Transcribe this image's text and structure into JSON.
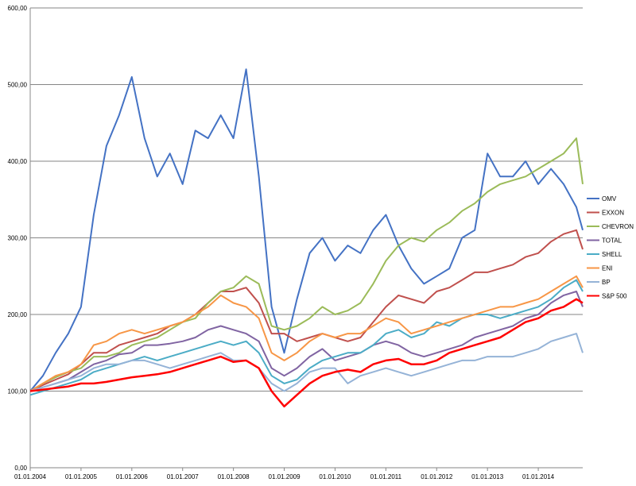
{
  "chart_data": {
    "type": "line",
    "title": "",
    "xlabel": "",
    "ylabel": "",
    "ylim": [
      0,
      600
    ],
    "yticks": [
      "0,00",
      "100,00",
      "200,00",
      "300,00",
      "400,00",
      "500,00",
      "600,00"
    ],
    "xticks": [
      "01.01.2004",
      "01.01.2005",
      "01.01.2006",
      "01.01.2007",
      "01.01.2008",
      "01.01.2009",
      "01.01.2010",
      "01.01.2011",
      "01.01.2012",
      "01.01.2013",
      "01.01.2014"
    ],
    "grid": "horizontal",
    "legend_position": "right",
    "x": [
      "01.01.2004",
      "01.04.2004",
      "01.07.2004",
      "01.10.2004",
      "01.01.2005",
      "01.04.2005",
      "01.07.2005",
      "01.10.2005",
      "01.01.2006",
      "01.04.2006",
      "01.07.2006",
      "01.10.2006",
      "01.01.2007",
      "01.04.2007",
      "01.07.2007",
      "01.10.2007",
      "01.01.2008",
      "01.04.2008",
      "01.07.2008",
      "01.10.2008",
      "01.01.2009",
      "01.04.2009",
      "01.07.2009",
      "01.10.2009",
      "01.01.2010",
      "01.04.2010",
      "01.07.2010",
      "01.10.2010",
      "01.01.2011",
      "01.04.2011",
      "01.07.2011",
      "01.10.2011",
      "01.01.2012",
      "01.04.2012",
      "01.07.2012",
      "01.10.2012",
      "01.01.2013",
      "01.04.2013",
      "01.07.2013",
      "01.10.2013",
      "01.01.2014",
      "01.04.2014",
      "01.07.2014",
      "01.10.2014",
      "15.11.2014"
    ],
    "series": [
      {
        "name": "OMV",
        "color": "#4472c4",
        "values": [
          100,
          120,
          150,
          175,
          210,
          330,
          420,
          460,
          510,
          430,
          380,
          410,
          370,
          440,
          430,
          460,
          430,
          520,
          380,
          210,
          150,
          220,
          280,
          300,
          270,
          290,
          280,
          310,
          330,
          290,
          260,
          240,
          250,
          260,
          300,
          310,
          410,
          380,
          380,
          400,
          370,
          390,
          370,
          340,
          310
        ]
      },
      {
        "name": "EXXON",
        "color": "#c0504d",
        "values": [
          100,
          108,
          115,
          122,
          135,
          150,
          150,
          160,
          165,
          170,
          175,
          185,
          190,
          200,
          215,
          230,
          230,
          235,
          215,
          175,
          175,
          165,
          170,
          175,
          170,
          165,
          170,
          190,
          210,
          225,
          220,
          215,
          230,
          235,
          245,
          255,
          255,
          260,
          265,
          275,
          280,
          295,
          305,
          310,
          285
        ]
      },
      {
        "name": "CHEVRON",
        "color": "#9bbb59",
        "values": [
          100,
          110,
          118,
          125,
          130,
          145,
          145,
          150,
          160,
          165,
          170,
          180,
          190,
          195,
          215,
          230,
          235,
          250,
          240,
          185,
          180,
          185,
          195,
          210,
          200,
          205,
          215,
          240,
          270,
          290,
          300,
          295,
          310,
          320,
          335,
          345,
          360,
          370,
          375,
          380,
          390,
          400,
          410,
          430,
          370
        ]
      },
      {
        "name": "TOTAL",
        "color": "#8064a2",
        "values": [
          100,
          105,
          110,
          115,
          125,
          135,
          140,
          148,
          150,
          160,
          160,
          162,
          165,
          170,
          180,
          185,
          180,
          175,
          165,
          130,
          120,
          130,
          145,
          155,
          140,
          145,
          150,
          160,
          165,
          160,
          150,
          145,
          150,
          155,
          160,
          170,
          175,
          180,
          185,
          195,
          200,
          215,
          225,
          230,
          210
        ]
      },
      {
        "name": "SHELL",
        "color": "#4bacc6",
        "values": [
          95,
          100,
          105,
          110,
          115,
          125,
          130,
          135,
          140,
          145,
          140,
          145,
          150,
          155,
          160,
          165,
          160,
          165,
          150,
          120,
          110,
          115,
          130,
          140,
          145,
          150,
          150,
          160,
          175,
          180,
          170,
          175,
          190,
          185,
          195,
          200,
          200,
          195,
          200,
          205,
          210,
          220,
          235,
          245,
          230
        ]
      },
      {
        "name": "ENI",
        "color": "#f79646",
        "values": [
          100,
          110,
          120,
          125,
          135,
          160,
          165,
          175,
          180,
          175,
          180,
          185,
          190,
          200,
          210,
          225,
          215,
          210,
          195,
          150,
          140,
          150,
          165,
          175,
          170,
          175,
          175,
          185,
          195,
          190,
          175,
          180,
          185,
          190,
          195,
          200,
          205,
          210,
          210,
          215,
          220,
          230,
          240,
          250,
          235
        ]
      },
      {
        "name": "BP",
        "color": "#95b3d7",
        "values": [
          100,
          105,
          110,
          115,
          120,
          130,
          135,
          135,
          140,
          140,
          135,
          130,
          135,
          140,
          145,
          150,
          140,
          140,
          130,
          110,
          100,
          110,
          125,
          130,
          130,
          110,
          120,
          125,
          130,
          125,
          120,
          125,
          130,
          135,
          140,
          140,
          145,
          145,
          145,
          150,
          155,
          165,
          170,
          175,
          150
        ]
      },
      {
        "name": "S&P 500",
        "color": "#ff0000",
        "values": [
          100,
          102,
          104,
          106,
          110,
          110,
          112,
          115,
          118,
          120,
          122,
          125,
          130,
          135,
          140,
          145,
          138,
          140,
          130,
          100,
          80,
          95,
          110,
          120,
          125,
          128,
          125,
          135,
          140,
          142,
          135,
          135,
          140,
          150,
          155,
          160,
          165,
          170,
          180,
          190,
          195,
          205,
          210,
          220,
          215
        ]
      }
    ]
  }
}
